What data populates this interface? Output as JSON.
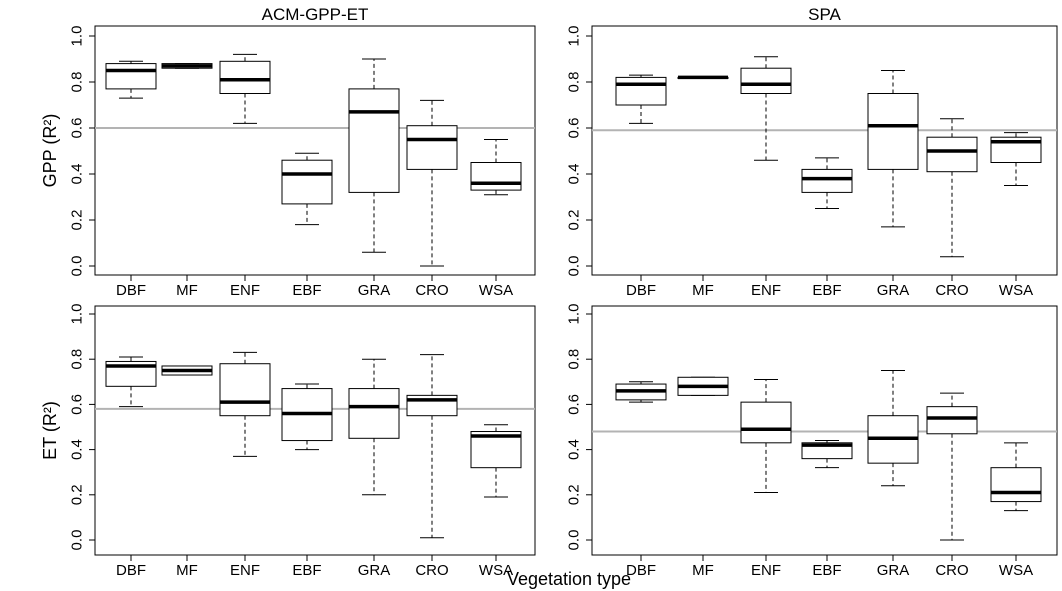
{
  "figure": {
    "xlabel": "Vegetation type",
    "row_labels": [
      "GPP (R²)",
      "ET (R²)"
    ],
    "y_ticks": [
      "0.0",
      "0.2",
      "0.4",
      "0.6",
      "0.8",
      "1.0"
    ],
    "colors": {
      "box_edge": "#000000",
      "median": "#000000",
      "reference_line": "#b3b3b3",
      "frame": "#000000"
    }
  },
  "chart_data": [
    {
      "type": "box",
      "title": "ACM-GPP-ET",
      "ylabel": "GPP (R²)",
      "ylim": [
        0,
        1
      ],
      "reference_line": 0.6,
      "categories": [
        "DBF",
        "MF",
        "ENF",
        "EBF",
        "GRA",
        "CRO",
        "WSA"
      ],
      "boxes": [
        {
          "min": 0.73,
          "q1": 0.77,
          "median": 0.85,
          "q3": 0.88,
          "max": 0.89
        },
        {
          "min": 0.86,
          "q1": 0.86,
          "median": 0.87,
          "q3": 0.88,
          "max": 0.88
        },
        {
          "min": 0.62,
          "q1": 0.75,
          "median": 0.81,
          "q3": 0.89,
          "max": 0.92
        },
        {
          "min": 0.18,
          "q1": 0.27,
          "median": 0.4,
          "q3": 0.46,
          "max": 0.49
        },
        {
          "min": 0.06,
          "q1": 0.32,
          "median": 0.67,
          "q3": 0.77,
          "max": 0.9
        },
        {
          "min": 0.0,
          "q1": 0.42,
          "median": 0.55,
          "q3": 0.61,
          "max": 0.72
        },
        {
          "min": 0.31,
          "q1": 0.33,
          "median": 0.36,
          "q3": 0.45,
          "max": 0.55
        }
      ]
    },
    {
      "type": "box",
      "title": "SPA",
      "ylabel": "",
      "ylim": [
        0,
        1
      ],
      "reference_line": 0.59,
      "categories": [
        "DBF",
        "MF",
        "ENF",
        "EBF",
        "GRA",
        "CRO",
        "WSA"
      ],
      "boxes": [
        {
          "min": 0.62,
          "q1": 0.7,
          "median": 0.79,
          "q3": 0.82,
          "max": 0.83
        },
        {
          "min": 0.82,
          "q1": 0.82,
          "median": 0.82,
          "q3": 0.82,
          "max": 0.82
        },
        {
          "min": 0.46,
          "q1": 0.75,
          "median": 0.79,
          "q3": 0.86,
          "max": 0.91
        },
        {
          "min": 0.25,
          "q1": 0.32,
          "median": 0.38,
          "q3": 0.42,
          "max": 0.47
        },
        {
          "min": 0.17,
          "q1": 0.42,
          "median": 0.61,
          "q3": 0.75,
          "max": 0.85
        },
        {
          "min": 0.04,
          "q1": 0.41,
          "median": 0.5,
          "q3": 0.56,
          "max": 0.64
        },
        {
          "min": 0.35,
          "q1": 0.45,
          "median": 0.54,
          "q3": 0.56,
          "max": 0.58
        }
      ]
    },
    {
      "type": "box",
      "title": "",
      "ylabel": "ET (R²)",
      "ylim": [
        0,
        1
      ],
      "reference_line": 0.58,
      "categories": [
        "DBF",
        "MF",
        "ENF",
        "EBF",
        "GRA",
        "CRO",
        "WSA"
      ],
      "boxes": [
        {
          "min": 0.59,
          "q1": 0.68,
          "median": 0.77,
          "q3": 0.79,
          "max": 0.81
        },
        {
          "min": 0.73,
          "q1": 0.73,
          "median": 0.75,
          "q3": 0.77,
          "max": 0.77
        },
        {
          "min": 0.37,
          "q1": 0.55,
          "median": 0.61,
          "q3": 0.78,
          "max": 0.83
        },
        {
          "min": 0.4,
          "q1": 0.44,
          "median": 0.56,
          "q3": 0.67,
          "max": 0.69
        },
        {
          "min": 0.2,
          "q1": 0.45,
          "median": 0.59,
          "q3": 0.67,
          "max": 0.8
        },
        {
          "min": 0.01,
          "q1": 0.55,
          "median": 0.62,
          "q3": 0.64,
          "max": 0.82
        },
        {
          "min": 0.19,
          "q1": 0.32,
          "median": 0.46,
          "q3": 0.48,
          "max": 0.51
        }
      ]
    },
    {
      "type": "box",
      "title": "",
      "ylabel": "",
      "ylim": [
        0,
        1
      ],
      "reference_line": 0.48,
      "categories": [
        "DBF",
        "MF",
        "ENF",
        "EBF",
        "GRA",
        "CRO",
        "WSA"
      ],
      "boxes": [
        {
          "min": 0.61,
          "q1": 0.62,
          "median": 0.66,
          "q3": 0.69,
          "max": 0.7
        },
        {
          "min": 0.64,
          "q1": 0.64,
          "median": 0.68,
          "q3": 0.72,
          "max": 0.72
        },
        {
          "min": 0.21,
          "q1": 0.43,
          "median": 0.49,
          "q3": 0.61,
          "max": 0.71
        },
        {
          "min": 0.32,
          "q1": 0.36,
          "median": 0.42,
          "q3": 0.43,
          "max": 0.44
        },
        {
          "min": 0.24,
          "q1": 0.34,
          "median": 0.45,
          "q3": 0.55,
          "max": 0.75
        },
        {
          "min": 0.0,
          "q1": 0.47,
          "median": 0.54,
          "q3": 0.59,
          "max": 0.65
        },
        {
          "min": 0.13,
          "q1": 0.17,
          "median": 0.21,
          "q3": 0.32,
          "max": 0.43
        }
      ]
    }
  ]
}
